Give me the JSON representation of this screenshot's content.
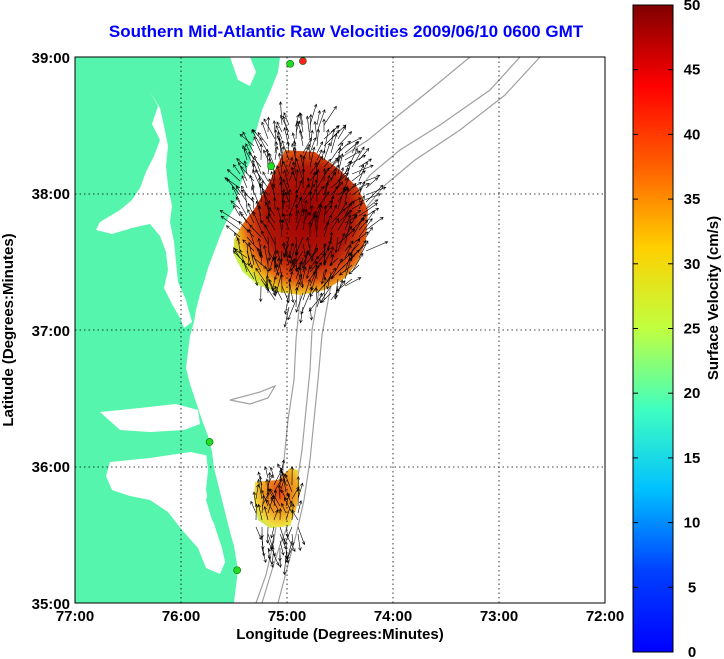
{
  "title": "Southern Mid-Atlantic Raw Velocities 2009/06/10 0600 GMT",
  "axes": {
    "xlabel": "Longitude (Degrees:Minutes)",
    "ylabel": "Latitude (Degrees:Minutes)",
    "xticks": [
      "77:00",
      "76:00",
      "75:00",
      "74:00",
      "73:00",
      "72:00"
    ],
    "yticks": [
      "39:00",
      "38:00",
      "37:00",
      "36:00",
      "35:00"
    ],
    "xlim": [
      -77,
      -72
    ],
    "ylim": [
      35,
      39
    ]
  },
  "colorbar": {
    "label": "Surface Velocity (cm/s)",
    "ticks": [
      "0",
      "5",
      "10",
      "15",
      "20",
      "25",
      "30",
      "35",
      "40",
      "45",
      "50"
    ],
    "range": [
      0,
      50
    ],
    "colormap": "jet"
  },
  "colors": {
    "land": "#55f5ad",
    "water": "#ffffff",
    "title": "#0000ff",
    "bathymetry": "#a0a0a0",
    "station_green": "#22dd22",
    "station_red": "#ff2020",
    "vectors": "#000000"
  },
  "radial_fields": [
    {
      "name": "northern-field",
      "center_lon": -74.85,
      "center_lat": 37.7,
      "peak_speed_cm_s": 48
    },
    {
      "name": "southern-field",
      "center_lon": -74.95,
      "center_lat": 35.72,
      "peak_speed_cm_s": 34
    }
  ],
  "stations": [
    {
      "lon": -74.85,
      "lat": 38.97,
      "status": "red"
    },
    {
      "lon": -74.97,
      "lat": 38.95,
      "status": "green"
    },
    {
      "lon": -75.15,
      "lat": 38.2,
      "status": "green"
    },
    {
      "lon": -75.73,
      "lat": 36.18,
      "status": "green"
    },
    {
      "lon": -75.47,
      "lat": 35.24,
      "status": "green"
    }
  ]
}
